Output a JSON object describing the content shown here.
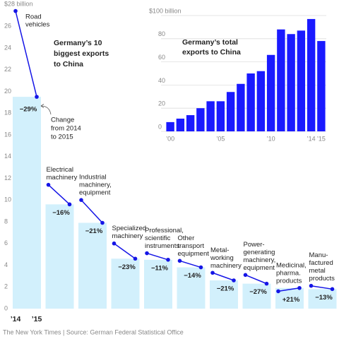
{
  "chart_data": [
    {
      "type": "line",
      "title": [
        "Germany’s 10",
        "biggest exports",
        "to China"
      ],
      "annotation": [
        "Change",
        "from 2014",
        "to 2015"
      ],
      "categories": [
        [
          "Road",
          "vehicles"
        ],
        [
          "Electrical",
          "machinery"
        ],
        [
          "Industrial",
          "machinery,",
          "equipment"
        ],
        [
          "Specialized",
          "machinery"
        ],
        [
          "Professional,",
          "scientific",
          "instruments"
        ],
        [
          "Other",
          "transport",
          "equipment"
        ],
        [
          "Metal-",
          "working",
          "machinery"
        ],
        [
          "Power-",
          "generating",
          "machinery,",
          "equipment"
        ],
        [
          "Medicinal,",
          "pharma.",
          "products"
        ],
        [
          "Manu-",
          "factured",
          "metal",
          "products"
        ]
      ],
      "series": [
        {
          "name": "’14",
          "color": "#1515e6",
          "values": [
            27.4,
            11.4,
            10.0,
            6.0,
            5.1,
            4.4,
            3.3,
            3.1,
            1.6,
            2.1
          ]
        },
        {
          "name": "’15",
          "color": "#1515e6",
          "values": [
            19.5,
            9.6,
            7.9,
            4.6,
            4.5,
            3.8,
            2.6,
            2.3,
            1.9,
            1.8
          ]
        }
      ],
      "bar_color": "#d2f0fc",
      "change_labels": [
        "−29%",
        "−16%",
        "−21%",
        "−23%",
        "−11%",
        "−14%",
        "−21%",
        "−27%",
        "+21%",
        "−13%"
      ],
      "ylim": [
        0,
        28
      ],
      "yticks": [
        0,
        2,
        4,
        6,
        8,
        10,
        12,
        14,
        16,
        18,
        20,
        22,
        24,
        26,
        {
          "value": 28,
          "label": "$28 billion"
        }
      ]
    },
    {
      "type": "bar",
      "title": [
        "Germany’s total",
        "exports to China"
      ],
      "categories": [
        "’00",
        null,
        null,
        null,
        null,
        "’05",
        null,
        null,
        null,
        null,
        "’10",
        null,
        null,
        null,
        "’14",
        "’15"
      ],
      "values": [
        8,
        11,
        14,
        20,
        26,
        26,
        34,
        41,
        50,
        52,
        66,
        88,
        84,
        87,
        97,
        78
      ],
      "color": "#1a1aff",
      "ylim": [
        0,
        100
      ],
      "yticks": [
        0,
        20,
        40,
        60,
        80,
        {
          "value": 100,
          "label": "$100 billion"
        }
      ],
      "grid": true
    }
  ],
  "source": "The New York Times | Source: German Federal Statistical Office"
}
